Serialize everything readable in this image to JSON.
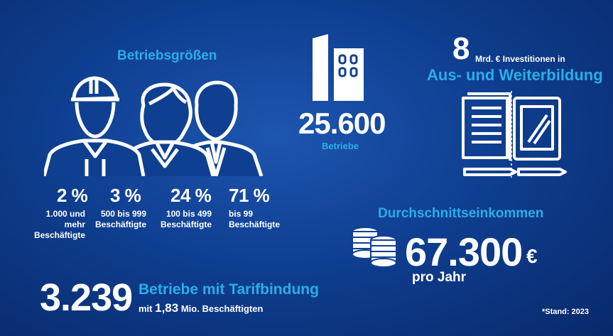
{
  "betriebsgroessen": {
    "title": "Betriebsgrößen",
    "items": [
      {
        "percent": "2 %",
        "label_line1": "1.000 und mehr",
        "label_line2": "Beschäftigte"
      },
      {
        "percent": "3 %",
        "label_line1": "500 bis 999",
        "label_line2": "Beschäftigte"
      },
      {
        "percent": "24 %",
        "label_line1": "100 bis 499",
        "label_line2": "Beschäftigte"
      },
      {
        "percent": "71 %",
        "label_line1": "bis 99",
        "label_line2": "Beschäftigte"
      }
    ]
  },
  "betriebe": {
    "value": "25.600",
    "label": "Betriebe"
  },
  "investition": {
    "value": "8",
    "text": "Mrd. € Investitionen in",
    "subtitle": "Aus- und Weiterbildung"
  },
  "einkommen": {
    "title": "Durchschnittseinkommen",
    "value": "67.300",
    "currency": "€",
    "period": "pro Jahr"
  },
  "tarif": {
    "value": "3.239",
    "title": "Betriebe mit Tarifbindung",
    "subtitle_prefix": "mit",
    "subtitle_number": "1,83",
    "subtitle_suffix": "Mio. Beschäftigten"
  },
  "stand": "*Stand: 2023",
  "colors": {
    "accent": "#2aaee8",
    "background": "#0f3f91",
    "text": "#ffffff"
  },
  "icons": [
    "workers-group-icon",
    "factory-building-icon",
    "book-tablet-icon",
    "coin-stacks-icon"
  ]
}
